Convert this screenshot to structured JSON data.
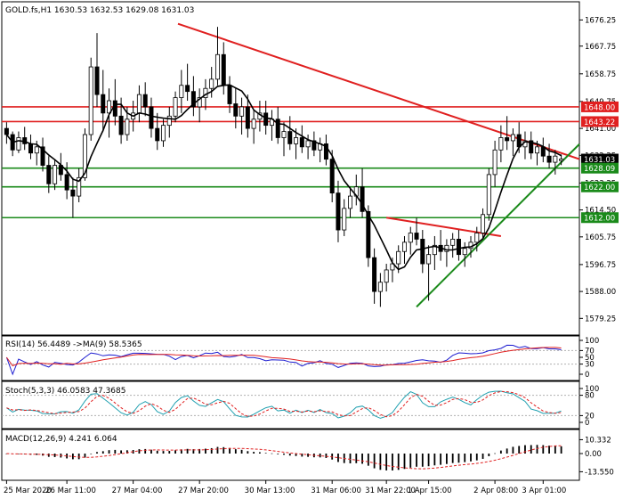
{
  "colors": {
    "background": "#ffffff",
    "frame": "#000000",
    "candle": "#000000",
    "ma": "#000000",
    "resistance": "#e02020",
    "support": "#1a8a1a",
    "label_text": "#ffffff",
    "rsi": "#1c1cd0",
    "rsi_ma": "#e02020",
    "stoch_main": "#20a0b0",
    "stoch_signal": "#e02020",
    "macd_hist": "#000000",
    "macd_signal": "#e02020"
  },
  "price_panel": {
    "title": "GOLD.fs,H1  1630.53 1632.53 1629.08 1631.03",
    "y_range": [
      1575,
      1681
    ],
    "y_ticks": [
      "1676.25",
      "1667.75",
      "1658.75",
      "1649.75",
      "1641.00",
      "1632.25",
      "1623.25",
      "1614.50",
      "1605.75",
      "1596.75",
      "1588.00",
      "1579.25"
    ],
    "level_labels": [
      {
        "text": "1648.00",
        "value": 1648.0,
        "color": "#e02020"
      },
      {
        "text": "1643.22",
        "value": 1643.22,
        "color": "#e02020"
      },
      {
        "text": "1631.03",
        "value": 1631.03,
        "color": "#000000"
      },
      {
        "text": "1628.09",
        "value": 1628.09,
        "color": "#1a8a1a"
      },
      {
        "text": "1622.00",
        "value": 1622.0,
        "color": "#1a8a1a"
      },
      {
        "text": "1612.00",
        "value": 1612.0,
        "color": "#1a8a1a"
      }
    ]
  },
  "rsi_panel": {
    "title": "RSI(14) 56.4489   ->MA(9) 58.5365",
    "y_ticks": [
      "100",
      "70",
      "50",
      "30",
      "0"
    ]
  },
  "stoch_panel": {
    "title": "Stoch(5,3,3) 46.0583 47.3685",
    "y_ticks": [
      "100",
      "80",
      "20",
      "0"
    ]
  },
  "macd_panel": {
    "title": "MACD(12,26,9) 4.241 6.064",
    "y_ticks": [
      "10.332",
      "0.00",
      "-13.550"
    ]
  },
  "x_axis": {
    "labels": [
      "25 Mar 2020",
      "26 Mar 11:00",
      "27 Mar 04:00",
      "27 Mar 20:00",
      "30 Mar 13:00",
      "31 Mar 06:00",
      "31 Mar 22:00",
      "1 Apr 15:00",
      "2 Apr 08:00",
      "3 Apr 01:00"
    ]
  },
  "chart_data": {
    "type": "candlestick",
    "symbol": "GOLD.fs",
    "timeframe": "H1",
    "last": {
      "open": 1630.53,
      "high": 1632.53,
      "low": 1629.08,
      "close": 1631.03
    },
    "horizontal_levels": [
      {
        "value": 1648.0,
        "kind": "resistance"
      },
      {
        "value": 1643.22,
        "kind": "resistance"
      },
      {
        "value": 1628.09,
        "kind": "support"
      },
      {
        "value": 1622.0,
        "kind": "support"
      },
      {
        "value": 1612.0,
        "kind": "support"
      }
    ],
    "trendlines": [
      {
        "kind": "resistance",
        "from": {
          "x": "27 Mar 04:00",
          "y": 1675
        },
        "to": {
          "x": "3 Apr 01:00",
          "y": 1633
        }
      },
      {
        "kind": "resistance",
        "from": {
          "x": "31 Mar 22:00",
          "y": 1612
        },
        "to": {
          "x": "2 Apr 08:00",
          "y": 1606
        }
      },
      {
        "kind": "support",
        "from": {
          "x": "1 Apr 15:00",
          "y": 1583
        },
        "to": {
          "x": "3 Apr 01:00",
          "y": 1630
        }
      }
    ],
    "candles": [
      [
        1641.0,
        1643.0,
        1636.0,
        1639.0
      ],
      [
        1639.0,
        1640.0,
        1632.0,
        1634.0
      ],
      [
        1634.0,
        1640.0,
        1633.0,
        1638.0
      ],
      [
        1638.0,
        1641.5,
        1634.0,
        1636.0
      ],
      [
        1636.0,
        1639.0,
        1631.0,
        1633.0
      ],
      [
        1633.0,
        1637.0,
        1629.0,
        1635.0
      ],
      [
        1635.0,
        1638.0,
        1627.0,
        1629.0
      ],
      [
        1629.0,
        1632.0,
        1620.0,
        1623.0
      ],
      [
        1623.0,
        1631.0,
        1621.0,
        1629.0
      ],
      [
        1629.0,
        1633.0,
        1624.0,
        1626.0
      ],
      [
        1626.0,
        1630.0,
        1618.0,
        1621.0
      ],
      [
        1621.0,
        1625.0,
        1612.0,
        1619.0
      ],
      [
        1619.0,
        1628.0,
        1617.0,
        1625.0
      ],
      [
        1625.0,
        1641.0,
        1624.0,
        1639.0
      ],
      [
        1639.0,
        1664.0,
        1637.0,
        1661.0
      ],
      [
        1661.0,
        1672.0,
        1648.0,
        1652.0
      ],
      [
        1652.0,
        1660.0,
        1640.0,
        1646.0
      ],
      [
        1646.0,
        1654.0,
        1638.0,
        1650.0
      ],
      [
        1650.0,
        1657.0,
        1642.0,
        1645.0
      ],
      [
        1645.0,
        1651.0,
        1636.0,
        1639.0
      ],
      [
        1639.0,
        1648.0,
        1637.0,
        1644.0
      ],
      [
        1644.0,
        1650.0,
        1640.0,
        1646.0
      ],
      [
        1646.0,
        1655.0,
        1643.0,
        1652.0
      ],
      [
        1652.0,
        1656.0,
        1645.0,
        1648.0
      ],
      [
        1648.0,
        1651.0,
        1638.0,
        1641.0
      ],
      [
        1641.0,
        1646.0,
        1634.0,
        1637.0
      ],
      [
        1637.0,
        1644.0,
        1635.0,
        1642.0
      ],
      [
        1642.0,
        1648.0,
        1638.0,
        1645.0
      ],
      [
        1645.0,
        1653.0,
        1643.0,
        1651.0
      ],
      [
        1651.0,
        1660.0,
        1646.0,
        1655.0
      ],
      [
        1655.0,
        1662.0,
        1650.0,
        1653.0
      ],
      [
        1653.0,
        1658.0,
        1645.0,
        1648.0
      ],
      [
        1648.0,
        1654.0,
        1643.0,
        1651.0
      ],
      [
        1651.0,
        1657.0,
        1647.0,
        1654.0
      ],
      [
        1654.0,
        1661.0,
        1651.0,
        1657.0
      ],
      [
        1657.0,
        1674.0,
        1655.0,
        1665.0
      ],
      [
        1665.0,
        1669.0,
        1652.0,
        1655.0
      ],
      [
        1655.0,
        1658.0,
        1646.0,
        1649.0
      ],
      [
        1649.0,
        1654.0,
        1641.0,
        1645.0
      ],
      [
        1645.0,
        1651.0,
        1639.0,
        1648.0
      ],
      [
        1648.0,
        1652.0,
        1638.0,
        1641.0
      ],
      [
        1641.0,
        1647.0,
        1636.0,
        1644.0
      ],
      [
        1644.0,
        1650.0,
        1640.0,
        1646.0
      ],
      [
        1646.0,
        1650.0,
        1639.0,
        1642.0
      ],
      [
        1642.0,
        1647.0,
        1637.0,
        1644.0
      ],
      [
        1644.0,
        1648.0,
        1636.0,
        1638.0
      ],
      [
        1638.0,
        1643.0,
        1632.0,
        1640.0
      ],
      [
        1640.0,
        1645.0,
        1634.0,
        1636.0
      ],
      [
        1636.0,
        1641.0,
        1631.0,
        1638.0
      ],
      [
        1638.0,
        1642.0,
        1633.0,
        1635.0
      ],
      [
        1635.0,
        1639.0,
        1631.0,
        1637.0
      ],
      [
        1637.0,
        1640.0,
        1632.0,
        1634.0
      ],
      [
        1634.0,
        1638.0,
        1630.0,
        1636.0
      ],
      [
        1636.0,
        1639.0,
        1629.0,
        1631.0
      ],
      [
        1631.0,
        1634.0,
        1617.0,
        1620.0
      ],
      [
        1620.0,
        1624.0,
        1604.0,
        1608.0
      ],
      [
        1608.0,
        1618.0,
        1606.0,
        1615.0
      ],
      [
        1615.0,
        1622.0,
        1612.0,
        1619.0
      ],
      [
        1619.0,
        1626.0,
        1616.0,
        1622.0
      ],
      [
        1622.0,
        1628.0,
        1612.0,
        1614.0
      ],
      [
        1614.0,
        1616.0,
        1596.0,
        1599.0
      ],
      [
        1599.0,
        1602.0,
        1584.0,
        1588.0
      ],
      [
        1588.0,
        1594.0,
        1583.0,
        1591.0
      ],
      [
        1591.0,
        1597.0,
        1588.0,
        1595.0
      ],
      [
        1595.0,
        1599.0,
        1591.0,
        1597.0
      ],
      [
        1597.0,
        1603.0,
        1594.0,
        1601.0
      ],
      [
        1601.0,
        1606.0,
        1597.0,
        1604.0
      ],
      [
        1604.0,
        1609.0,
        1600.0,
        1607.0
      ],
      [
        1607.0,
        1612.0,
        1603.0,
        1605.0
      ],
      [
        1605.0,
        1608.0,
        1594.0,
        1597.0
      ],
      [
        1597.0,
        1603.0,
        1585.0,
        1600.0
      ],
      [
        1600.0,
        1606.0,
        1595.0,
        1603.0
      ],
      [
        1603.0,
        1608.0,
        1598.0,
        1601.0
      ],
      [
        1601.0,
        1605.0,
        1596.0,
        1603.0
      ],
      [
        1603.0,
        1607.0,
        1599.0,
        1605.0
      ],
      [
        1605.0,
        1608.0,
        1598.0,
        1600.0
      ],
      [
        1600.0,
        1604.0,
        1596.0,
        1602.0
      ],
      [
        1602.0,
        1606.0,
        1599.0,
        1604.0
      ],
      [
        1604.0,
        1609.0,
        1601.0,
        1607.0
      ],
      [
        1607.0,
        1615.0,
        1605.0,
        1613.0
      ],
      [
        1613.0,
        1628.0,
        1611.0,
        1626.0
      ],
      [
        1626.0,
        1637.0,
        1622.0,
        1634.0
      ],
      [
        1634.0,
        1642.0,
        1630.0,
        1638.0
      ],
      [
        1638.0,
        1645.0,
        1634.0,
        1637.0
      ],
      [
        1637.0,
        1641.0,
        1632.0,
        1639.0
      ],
      [
        1639.0,
        1643.0,
        1633.0,
        1635.0
      ],
      [
        1635.0,
        1640.0,
        1631.0,
        1637.0
      ],
      [
        1637.0,
        1640.0,
        1631.0,
        1633.0
      ],
      [
        1633.0,
        1637.0,
        1629.0,
        1635.0
      ],
      [
        1635.0,
        1638.0,
        1630.0,
        1632.0
      ],
      [
        1632.0,
        1636.0,
        1628.0,
        1630.0
      ],
      [
        1630.0,
        1634.0,
        1626.0,
        1632.0
      ],
      [
        1630.53,
        1632.53,
        1629.08,
        1631.03
      ]
    ]
  }
}
